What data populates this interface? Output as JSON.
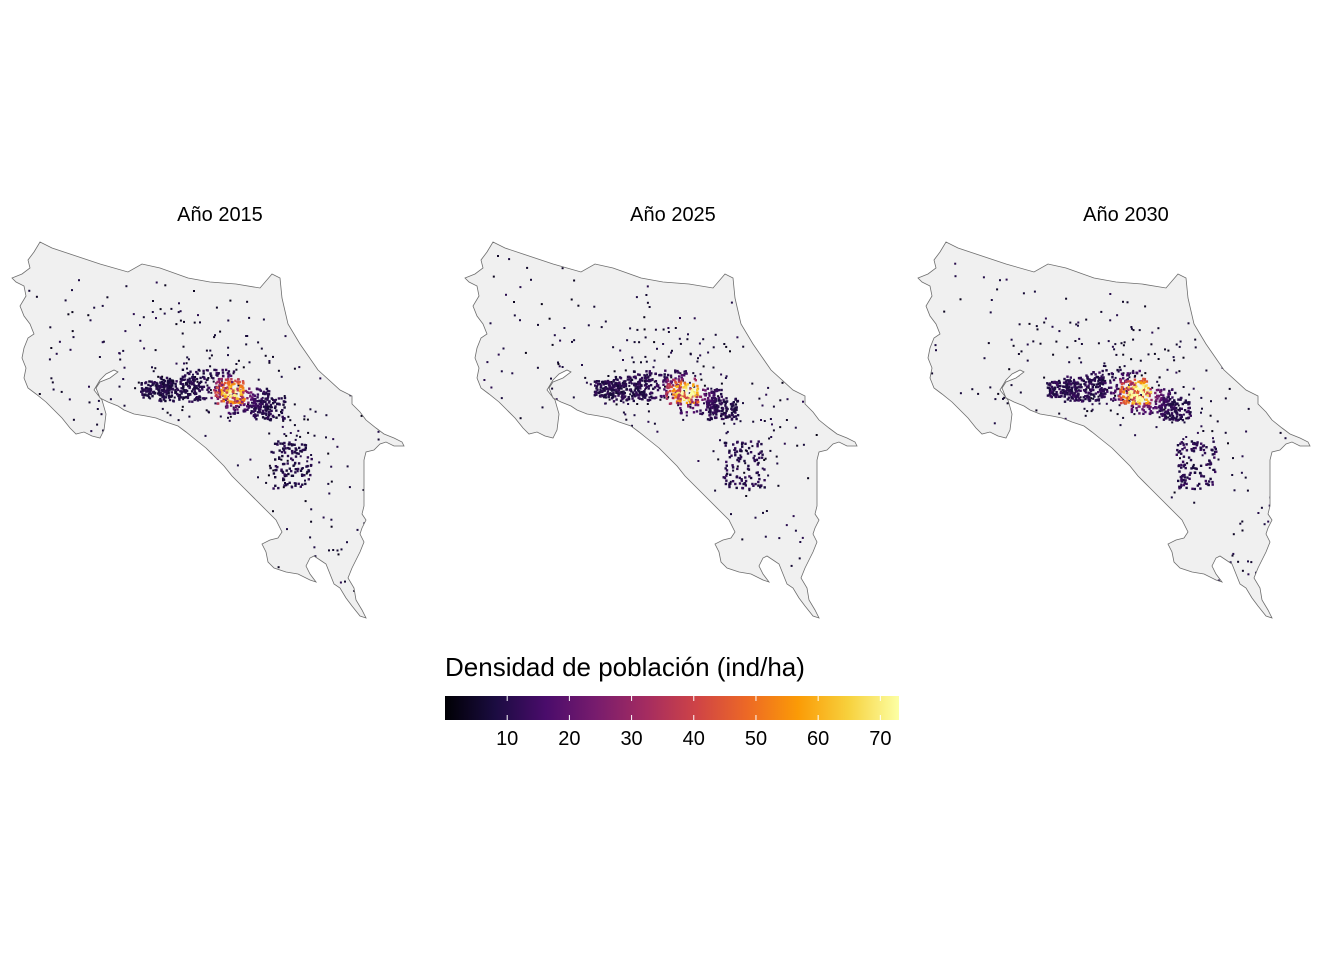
{
  "panels": [
    {
      "title": "Año 2015"
    },
    {
      "title": "Año 2025"
    },
    {
      "title": "Año 2030"
    }
  ],
  "legend": {
    "title": "Densidad de población (ind/ha)",
    "min": 0,
    "max": 73,
    "ticks": [
      "10",
      "20",
      "30",
      "40",
      "50",
      "60",
      "70"
    ],
    "tick_values": [
      10,
      20,
      30,
      40,
      50,
      60,
      70
    ],
    "palette": "inferno",
    "colors": [
      "#000004",
      "#1b0c41",
      "#4a0c6b",
      "#781c6d",
      "#a52c60",
      "#cf4446",
      "#ed6925",
      "#fb9b06",
      "#f7d13d",
      "#fcffa4"
    ]
  },
  "map_style": {
    "land_fill": "#f0f0f0",
    "border_color": "#6e6e6e",
    "background": "#ffffff"
  }
}
